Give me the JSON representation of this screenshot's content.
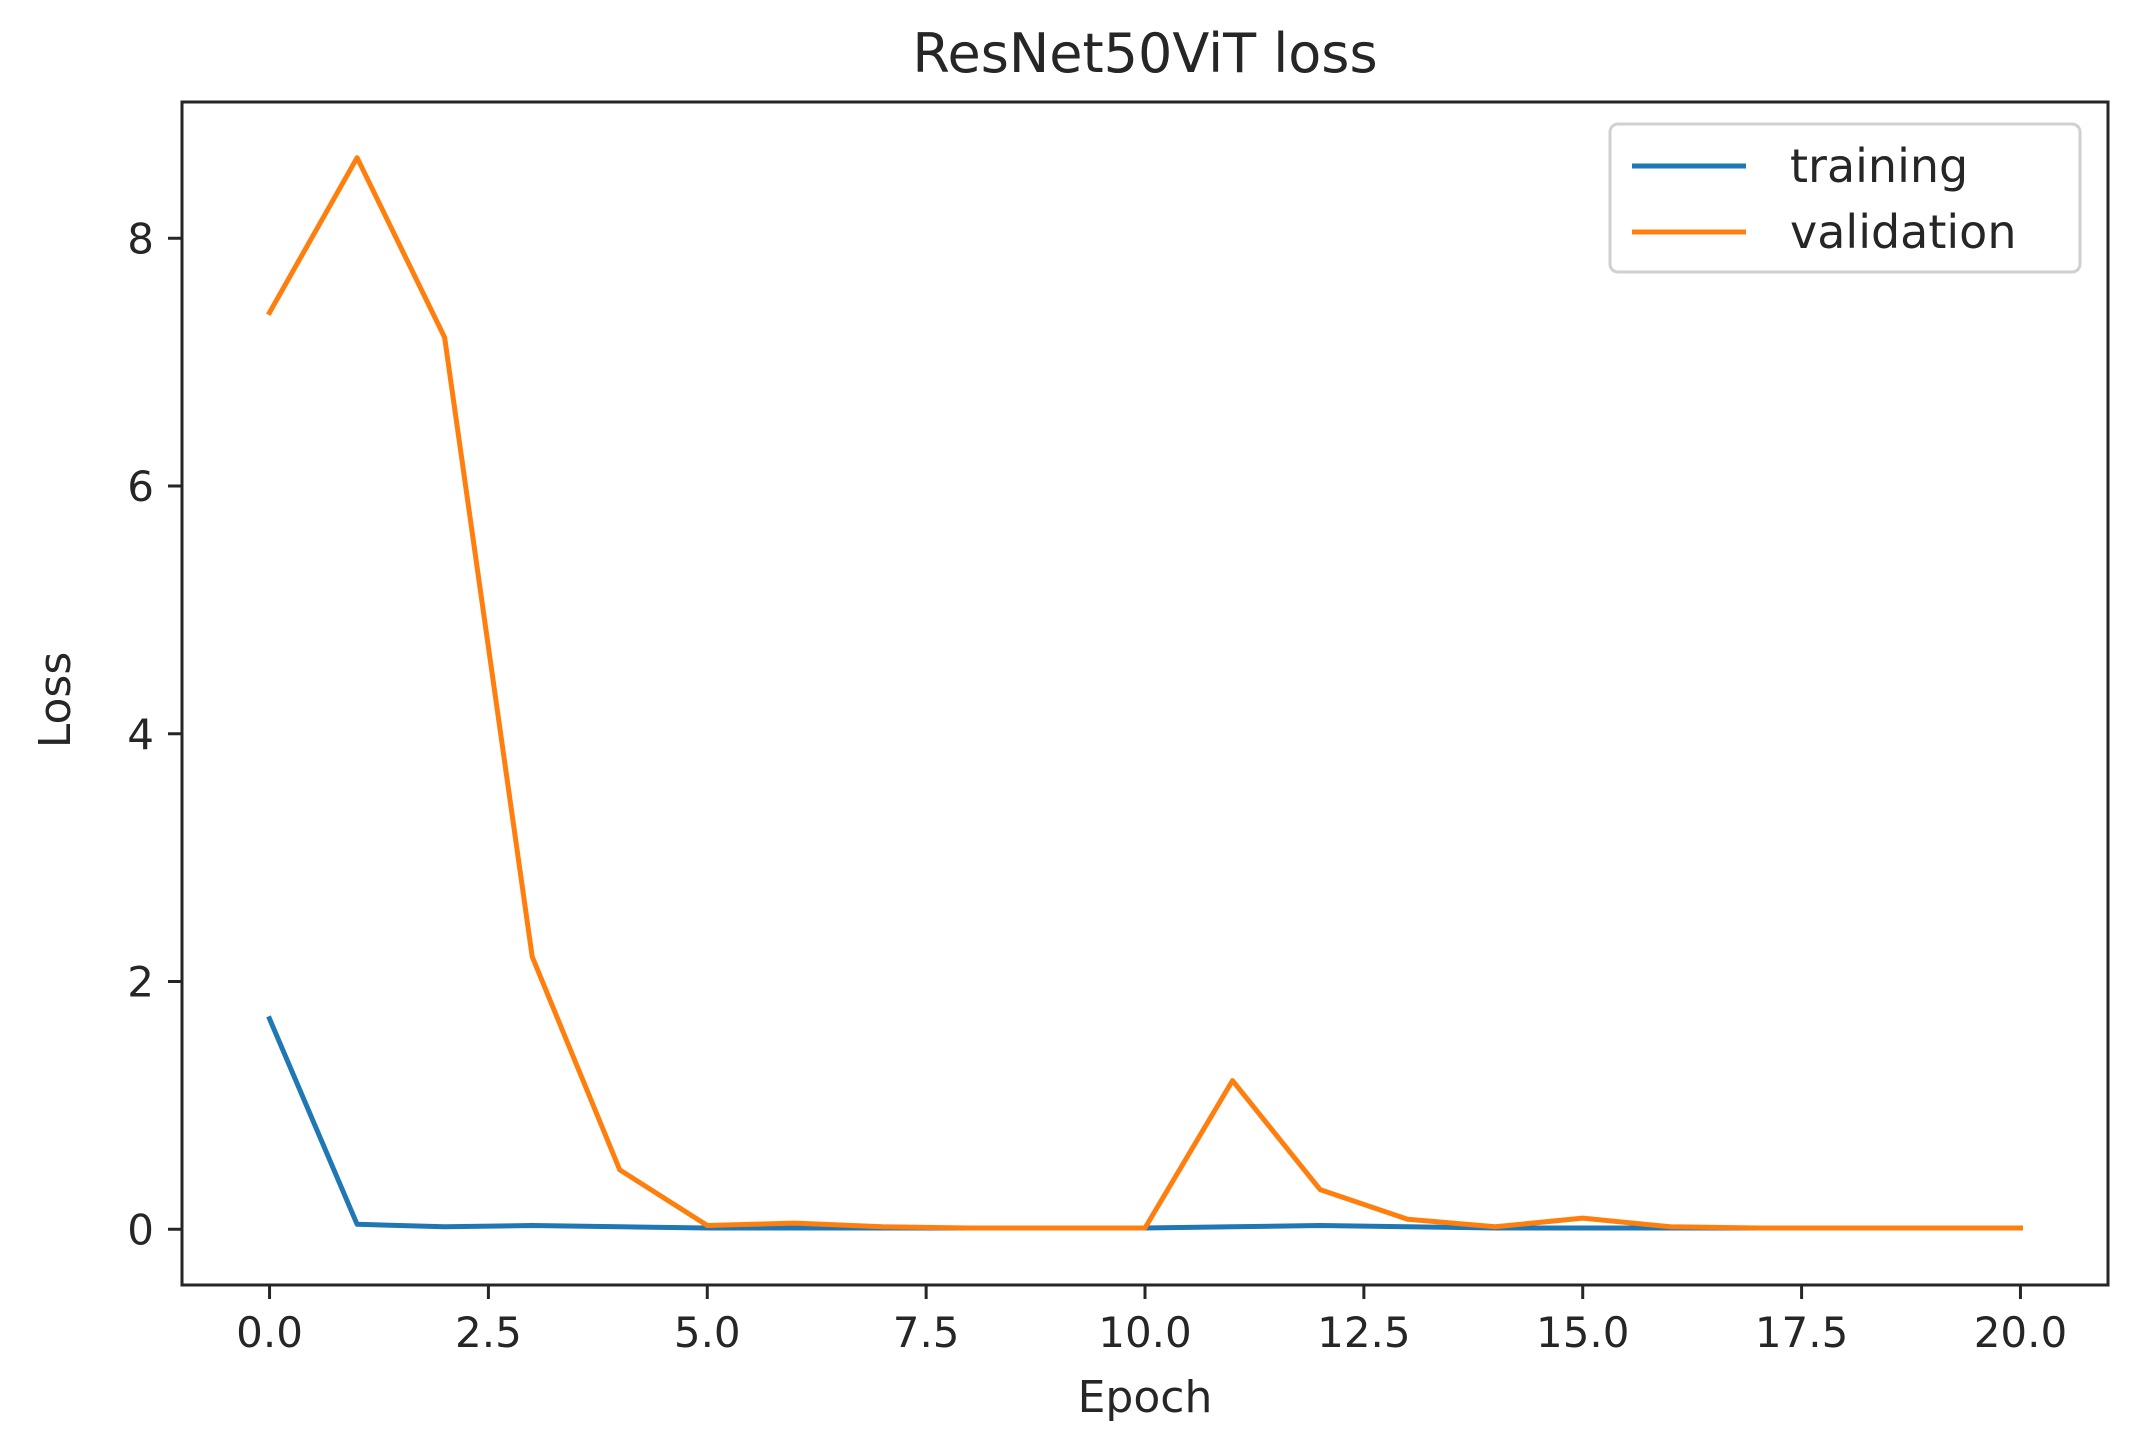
{
  "chart_data": {
    "type": "line",
    "title": "ResNet50ViT loss",
    "xlabel": "Epoch",
    "ylabel": "Loss",
    "xlim": [
      -1.0,
      21.0
    ],
    "ylim": [
      -0.45,
      9.1
    ],
    "xticks": [
      0,
      2.5,
      5,
      7.5,
      10,
      12.5,
      15,
      17.5,
      20
    ],
    "xtick_labels": [
      "0.0",
      "2.5",
      "5.0",
      "7.5",
      "10.0",
      "12.5",
      "15.0",
      "17.5",
      "20.0"
    ],
    "yticks": [
      0,
      2,
      4,
      6,
      8
    ],
    "ytick_labels": [
      "0",
      "2",
      "4",
      "6",
      "8"
    ],
    "grid": false,
    "legend_position": "top-right",
    "x": [
      0,
      1,
      2,
      3,
      4,
      5,
      6,
      7,
      8,
      9,
      10,
      11,
      12,
      13,
      14,
      15,
      16,
      17,
      18,
      19,
      20
    ],
    "series": [
      {
        "name": "training",
        "color": "#1f77b4",
        "values": [
          1.7,
          0.04,
          0.02,
          0.03,
          0.02,
          0.01,
          0.01,
          0.01,
          0.01,
          0.01,
          0.01,
          0.02,
          0.03,
          0.02,
          0.01,
          0.01,
          0.01,
          0.01,
          0.01,
          0.01,
          0.01
        ]
      },
      {
        "name": "validation",
        "color": "#ff7f0e",
        "values": [
          7.4,
          8.65,
          7.2,
          2.2,
          0.48,
          0.03,
          0.05,
          0.02,
          0.01,
          0.01,
          0.01,
          1.2,
          0.32,
          0.08,
          0.02,
          0.09,
          0.02,
          0.01,
          0.01,
          0.01,
          0.01
        ]
      }
    ]
  }
}
